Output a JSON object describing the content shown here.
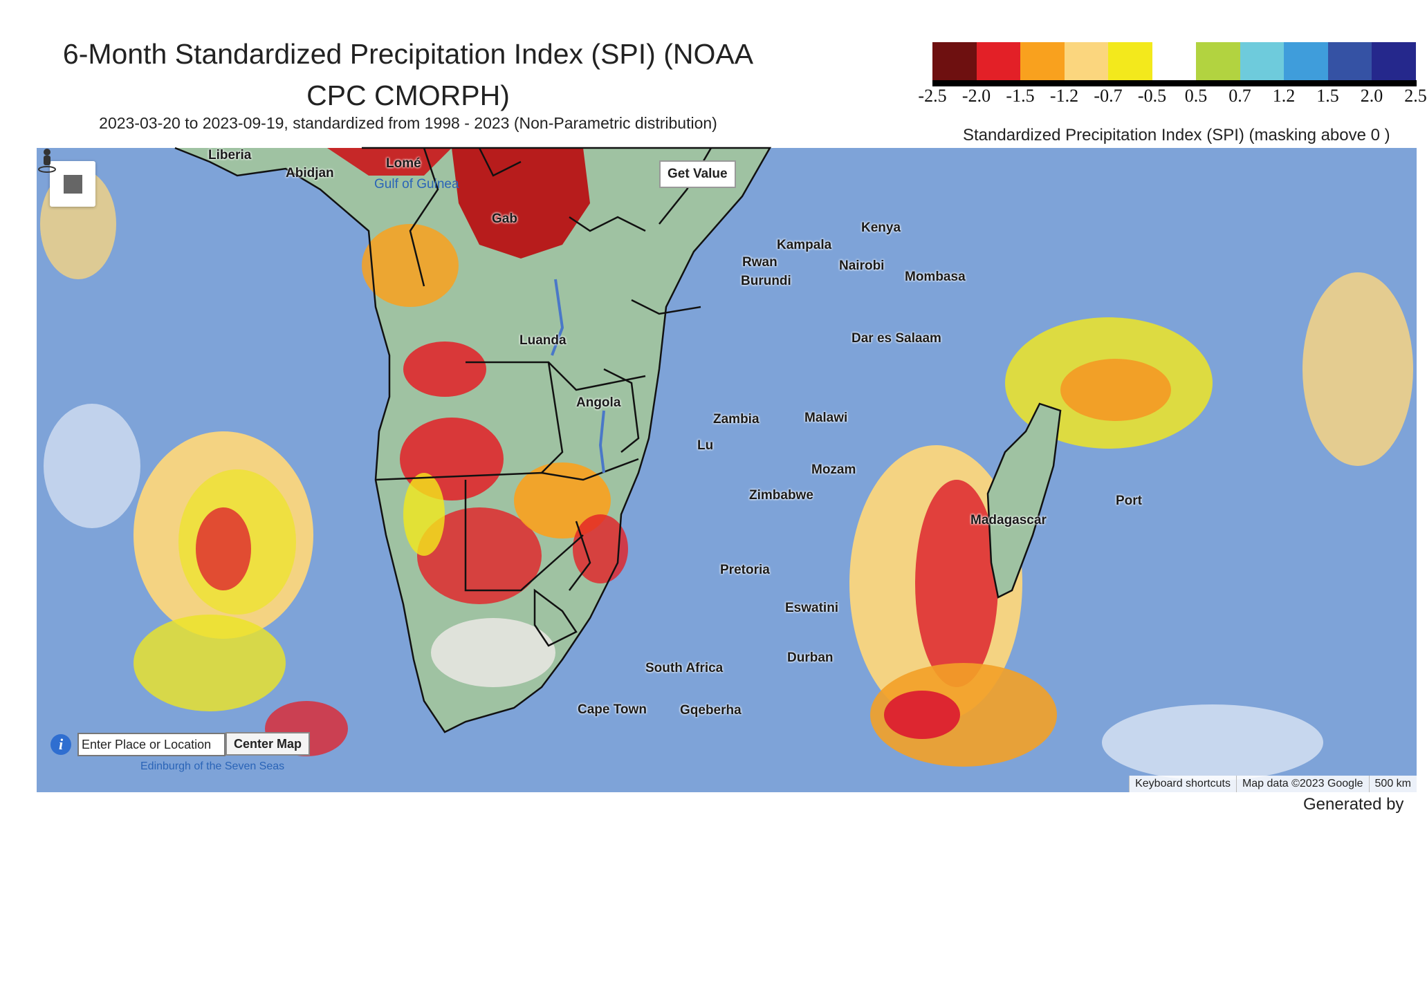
{
  "title": "6-Month Standardized Precipitation Index (SPI) (NOAA CPC CMORPH)",
  "subtitle": "2023-03-20 to 2023-09-19, standardized from 1998 - 2023 (Non-Parametric distribution)",
  "legend": {
    "title": "Standardized Precipitation Index (SPI) (masking above 0 )",
    "colors": [
      "#6e1010",
      "#e32027",
      "#f9a11e",
      "#fbd67e",
      "#f3e91c",
      "#ffffff",
      "#b2d340",
      "#6ecbdc",
      "#3f9ddb",
      "#3552a4",
      "#25288c"
    ],
    "ticks": [
      "-2.5",
      "-2.0",
      "-1.5",
      "-1.2",
      "-0.7",
      "-0.5",
      "0.5",
      "0.7",
      "1.2",
      "1.5",
      "2.0",
      "2.5"
    ]
  },
  "map": {
    "get_value_label": "Get Value",
    "search_placeholder": "Enter Place or Location",
    "center_button_label": "Center Map",
    "info_icon": "i",
    "labels": {
      "liberia": "Liberia",
      "abidjan": "Abidjan",
      "lome": "Lomé",
      "gulf_of_guinea": "Gulf of Guinea",
      "gabon": "Gab",
      "kenya": "Kenya",
      "kampala": "Kampala",
      "nairobi": "Nairobi",
      "rwanda": "Rwan",
      "burundi": "Burundi",
      "mombasa": "Mombasa",
      "luanda": "Luanda",
      "dar_es_salaam": "Dar es Salaam",
      "angola": "Angola",
      "zambia": "Zambia",
      "malawi": "Malawi",
      "lusaka": "Lu",
      "mozambique": "Mozam",
      "zimbabwe": "Zimbabwe",
      "madagascar": "Madagascar",
      "port_louis": "Port",
      "pretoria": "Pretoria",
      "eswatini": "Eswatini",
      "durban": "Durban",
      "south_africa": "South Africa",
      "cape_town": "Cape Town",
      "gqeberha": "Gqeberha",
      "tristan": "Edinburgh of the Seven Seas"
    },
    "footer": {
      "keyboard": "Keyboard shortcuts",
      "map_data": "Map data ©2023 Google",
      "scale": "500 km"
    }
  },
  "generated_by": "Generated by"
}
